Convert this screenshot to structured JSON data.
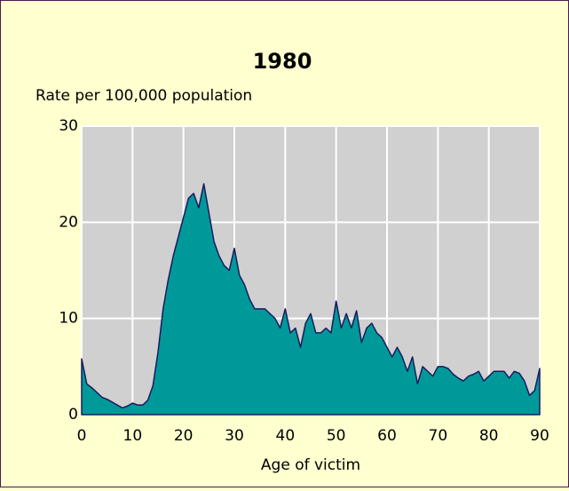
{
  "chart_data": {
    "type": "area",
    "title": "1980",
    "ylabel": "Rate per 100,000 population",
    "xlabel": "Age of victim",
    "x": [
      0,
      1,
      2,
      3,
      4,
      5,
      6,
      7,
      8,
      9,
      10,
      11,
      12,
      13,
      14,
      15,
      16,
      17,
      18,
      19,
      20,
      21,
      22,
      23,
      24,
      25,
      26,
      27,
      28,
      29,
      30,
      31,
      32,
      33,
      34,
      35,
      36,
      37,
      38,
      39,
      40,
      41,
      42,
      43,
      44,
      45,
      46,
      47,
      48,
      49,
      50,
      51,
      52,
      53,
      54,
      55,
      56,
      57,
      58,
      59,
      60,
      61,
      62,
      63,
      64,
      65,
      66,
      67,
      68,
      69,
      70,
      71,
      72,
      73,
      74,
      75,
      76,
      77,
      78,
      79,
      80,
      81,
      82,
      83,
      84,
      85,
      86,
      87,
      88,
      89,
      90
    ],
    "values": [
      5.8,
      3.2,
      2.8,
      2.3,
      1.8,
      1.6,
      1.3,
      1.0,
      0.7,
      0.9,
      1.2,
      1.0,
      1.0,
      1.5,
      3.0,
      6.5,
      11,
      14,
      16.5,
      18.5,
      20.5,
      22.5,
      23,
      21.5,
      24,
      21,
      18,
      16.5,
      15.5,
      15,
      17.3,
      14.5,
      13.5,
      12,
      11,
      11,
      11,
      10.5,
      10,
      9,
      11,
      8.5,
      9,
      7,
      9.5,
      10.5,
      8.5,
      8.5,
      9,
      8.5,
      11.8,
      9,
      10.5,
      9,
      10.8,
      7.5,
      9,
      9.5,
      8.5,
      8,
      7,
      6,
      7,
      6,
      4.5,
      6,
      3.2,
      5,
      4.5,
      4,
      5,
      5,
      4.8,
      4.2,
      3.8,
      3.5,
      4,
      4.2,
      4.5,
      3.5,
      4,
      4.5,
      4.5,
      4.5,
      3.8,
      4.5,
      4.3,
      3.5,
      2,
      2.5,
      4.8
    ],
    "color": "#009999",
    "line_color": "#1a1a5e",
    "xlim": [
      0,
      90
    ],
    "xticks": [
      0,
      10,
      20,
      30,
      40,
      50,
      60,
      70,
      80,
      90
    ],
    "ylim": [
      0,
      30
    ],
    "yticks": [
      0,
      10,
      20,
      30
    ],
    "grid": true
  }
}
